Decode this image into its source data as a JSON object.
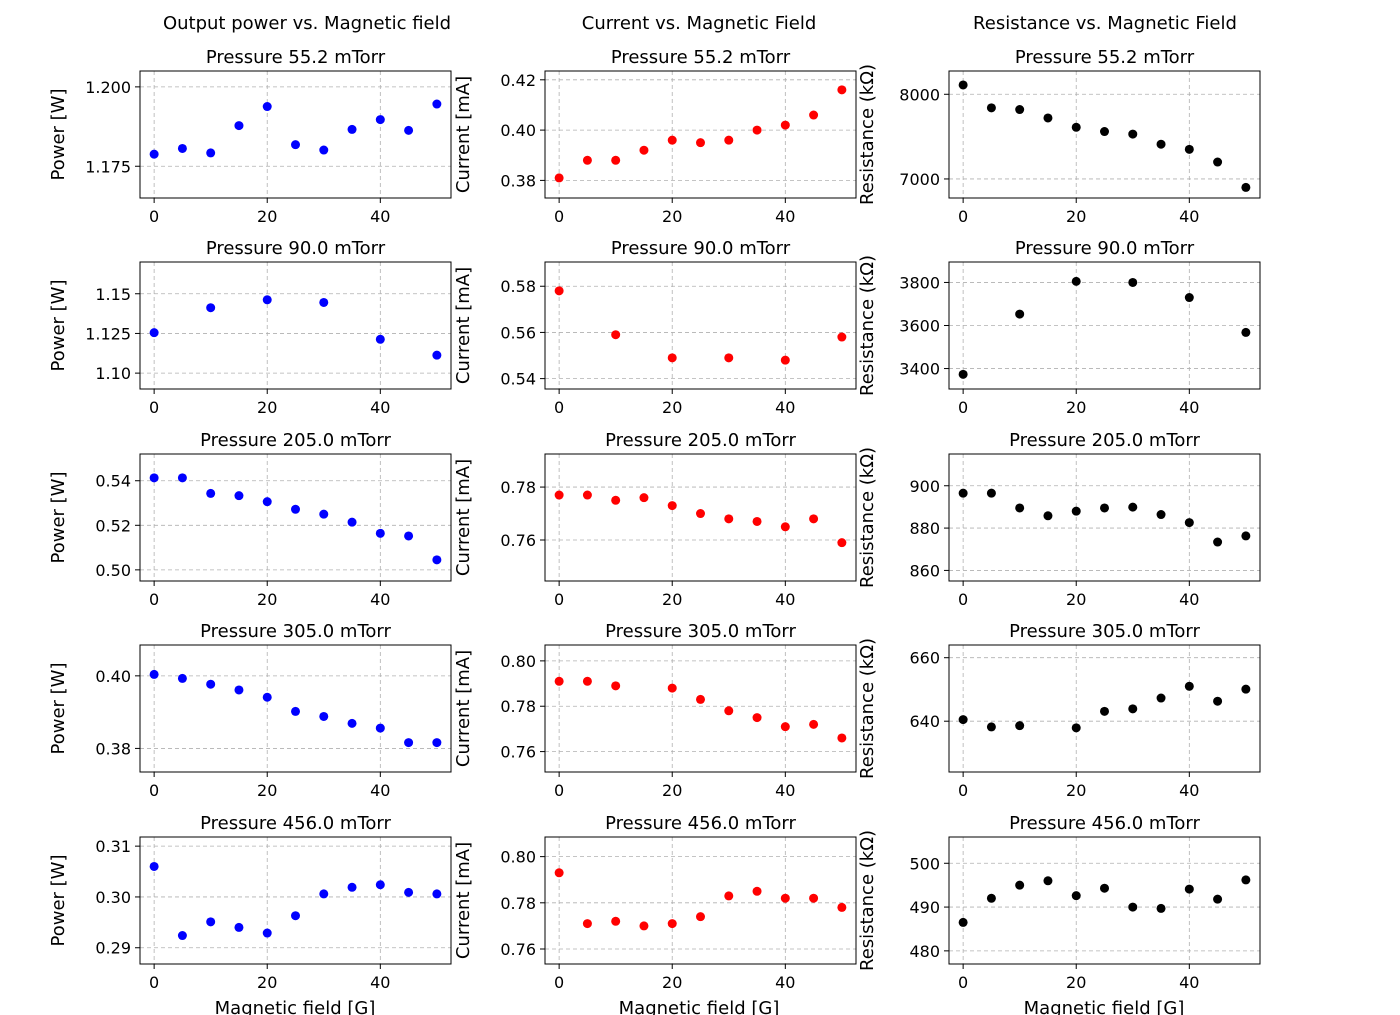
{
  "figure": {
    "column_titles": [
      "Output power vs. Magnetic field",
      "Current vs. Magnetic Field",
      "Resistance vs. Magnetic Field"
    ],
    "xlabel": "Magnetic field [G]",
    "row_titles": [
      "Pressure 55.2 mTorr",
      "Pressure 90.0 mTorr",
      "Pressure 205.0 mTorr",
      "Pressure 305.0 mTorr",
      "Pressure 456.0 mTorr"
    ]
  },
  "chart_data": [
    {
      "type": "scatter",
      "row": 0,
      "col": 0,
      "title": "Pressure 55.2 mTorr",
      "ylabel": "Power [W]",
      "color": "#0000ff",
      "xlim": [
        -2.5,
        52.5
      ],
      "ylim": [
        1.165,
        1.205
      ],
      "xticks": [
        0,
        20,
        40
      ],
      "xtick_labels": [
        "0",
        "20",
        "40"
      ],
      "yticks": [
        1.175,
        1.2
      ],
      "ytick_labels": [
        "1.175",
        "1.200"
      ],
      "x": [
        0,
        5,
        10,
        15,
        20,
        25,
        30,
        35,
        40,
        45,
        50
      ],
      "y": [
        1.1788,
        1.1806,
        1.1792,
        1.1878,
        1.1938,
        1.1818,
        1.1801,
        1.1866,
        1.1897,
        1.1863,
        1.1946
      ]
    },
    {
      "type": "scatter",
      "row": 0,
      "col": 1,
      "title": "Pressure 55.2 mTorr",
      "ylabel": "Current [mA]",
      "color": "#ff0000",
      "xlim": [
        -2.5,
        52.5
      ],
      "ylim": [
        0.373,
        0.4235
      ],
      "xticks": [
        0,
        20,
        40
      ],
      "xtick_labels": [
        "0",
        "20",
        "40"
      ],
      "yticks": [
        0.38,
        0.4,
        0.42
      ],
      "ytick_labels": [
        "0.38",
        "0.40",
        "0.42"
      ],
      "x": [
        0,
        5,
        10,
        15,
        20,
        25,
        30,
        35,
        40,
        45,
        50
      ],
      "y": [
        0.381,
        0.388,
        0.388,
        0.392,
        0.396,
        0.395,
        0.396,
        0.4,
        0.402,
        0.406,
        0.416
      ]
    },
    {
      "type": "scatter",
      "row": 0,
      "col": 2,
      "title": "Pressure 55.2 mTorr",
      "ylabel": "Resistance (kΩ)",
      "color": "#000000",
      "xlim": [
        -2.5,
        52.5
      ],
      "ylim": [
        6775,
        8275
      ],
      "xticks": [
        0,
        20,
        40
      ],
      "xtick_labels": [
        "0",
        "20",
        "40"
      ],
      "yticks": [
        7000,
        8000
      ],
      "ytick_labels": [
        "7000",
        "8000"
      ],
      "x": [
        0,
        5,
        10,
        15,
        20,
        25,
        30,
        35,
        40,
        45,
        50
      ],
      "y": [
        8110,
        7840,
        7820,
        7720,
        7610,
        7560,
        7530,
        7410,
        7350,
        7200,
        6900
      ]
    },
    {
      "type": "scatter",
      "row": 1,
      "col": 0,
      "title": "Pressure 90.0 mTorr",
      "ylabel": "Power [W]",
      "color": "#0000ff",
      "xlim": [
        -2.5,
        52.5
      ],
      "ylim": [
        1.09,
        1.17
      ],
      "xticks": [
        0,
        20,
        40
      ],
      "xtick_labels": [
        "0",
        "20",
        "40"
      ],
      "yticks": [
        1.1,
        1.125,
        1.15
      ],
      "ytick_labels": [
        "1.10",
        "1.125",
        "1.15"
      ],
      "x": [
        0,
        10,
        20,
        30,
        40,
        50
      ],
      "y": [
        1.1255,
        1.1412,
        1.1462,
        1.1445,
        1.1213,
        1.1113
      ]
    },
    {
      "type": "scatter",
      "row": 1,
      "col": 1,
      "title": "Pressure 90.0 mTorr",
      "ylabel": "Current [mA]",
      "color": "#ff0000",
      "xlim": [
        -2.5,
        52.5
      ],
      "ylim": [
        0.5355,
        0.5905
      ],
      "xticks": [
        0,
        20,
        40
      ],
      "xtick_labels": [
        "0",
        "20",
        "40"
      ],
      "yticks": [
        0.54,
        0.56,
        0.58
      ],
      "ytick_labels": [
        "0.54",
        "0.56",
        "0.58"
      ],
      "x": [
        0,
        10,
        20,
        30,
        40,
        50
      ],
      "y": [
        0.578,
        0.559,
        0.549,
        0.549,
        0.548,
        0.558
      ]
    },
    {
      "type": "scatter",
      "row": 1,
      "col": 2,
      "title": "Pressure 90.0 mTorr",
      "ylabel": "Resistance (kΩ)",
      "color": "#000000",
      "xlim": [
        -2.5,
        52.5
      ],
      "ylim": [
        3305,
        3895
      ],
      "xticks": [
        0,
        20,
        40
      ],
      "xtick_labels": [
        "0",
        "20",
        "40"
      ],
      "yticks": [
        3400,
        3600,
        3800
      ],
      "ytick_labels": [
        "3400",
        "3600",
        "3800"
      ],
      "x": [
        0,
        10,
        20,
        30,
        40,
        50
      ],
      "y": [
        3373,
        3653,
        3805,
        3800,
        3730,
        3568
      ]
    },
    {
      "type": "scatter",
      "row": 2,
      "col": 0,
      "title": "Pressure 205.0 mTorr",
      "ylabel": "Power [W]",
      "color": "#0000ff",
      "xlim": [
        -2.5,
        52.5
      ],
      "ylim": [
        0.495,
        0.552
      ],
      "xticks": [
        0,
        20,
        40
      ],
      "xtick_labels": [
        "0",
        "20",
        "40"
      ],
      "yticks": [
        0.5,
        0.52,
        0.54
      ],
      "ytick_labels": [
        "0.50",
        "0.52",
        "0.54"
      ],
      "x": [
        0,
        5,
        10,
        15,
        20,
        25,
        30,
        35,
        40,
        45,
        50
      ],
      "y": [
        0.5413,
        0.5413,
        0.5343,
        0.5333,
        0.5306,
        0.5272,
        0.525,
        0.5214,
        0.5164,
        0.5152,
        0.5045
      ]
    },
    {
      "type": "scatter",
      "row": 2,
      "col": 1,
      "title": "Pressure 205.0 mTorr",
      "ylabel": "Current [mA]",
      "color": "#ff0000",
      "xlim": [
        -2.5,
        52.5
      ],
      "ylim": [
        0.7445,
        0.7925
      ],
      "xticks": [
        0,
        20,
        40
      ],
      "xtick_labels": [
        "0",
        "20",
        "40"
      ],
      "yticks": [
        0.76,
        0.78
      ],
      "ytick_labels": [
        "0.76",
        "0.78"
      ],
      "x": [
        0,
        5,
        10,
        15,
        20,
        25,
        30,
        35,
        40,
        45,
        50
      ],
      "y": [
        0.777,
        0.777,
        0.775,
        0.776,
        0.773,
        0.77,
        0.768,
        0.767,
        0.765,
        0.768,
        0.759
      ]
    },
    {
      "type": "scatter",
      "row": 2,
      "col": 2,
      "title": "Pressure 205.0 mTorr",
      "ylabel": "Resistance (kΩ)",
      "color": "#000000",
      "xlim": [
        -2.5,
        52.5
      ],
      "ylim": [
        855,
        915
      ],
      "xticks": [
        0,
        20,
        40
      ],
      "xtick_labels": [
        "0",
        "20",
        "40"
      ],
      "yticks": [
        860,
        880,
        900
      ],
      "ytick_labels": [
        "860",
        "880",
        "900"
      ],
      "x": [
        0,
        5,
        10,
        15,
        20,
        25,
        30,
        35,
        40,
        45,
        50
      ],
      "y": [
        896.5,
        896.5,
        889.5,
        885.8,
        888,
        889.5,
        889.9,
        886.4,
        882.6,
        873.4,
        876.3
      ]
    },
    {
      "type": "scatter",
      "row": 3,
      "col": 0,
      "title": "Pressure 305.0 mTorr",
      "ylabel": "Power [W]",
      "color": "#0000ff",
      "xlim": [
        -2.5,
        52.5
      ],
      "ylim": [
        0.3735,
        0.4085
      ],
      "xticks": [
        0,
        20,
        40
      ],
      "xtick_labels": [
        "0",
        "20",
        "40"
      ],
      "yticks": [
        0.38,
        0.4
      ],
      "ytick_labels": [
        "0.38",
        "0.40"
      ],
      "x": [
        0,
        5,
        10,
        15,
        20,
        25,
        30,
        35,
        40,
        45,
        50
      ],
      "y": [
        0.4004,
        0.3993,
        0.3977,
        0.3961,
        0.3941,
        0.3902,
        0.3888,
        0.3869,
        0.3856,
        0.3816,
        0.3816
      ]
    },
    {
      "type": "scatter",
      "row": 3,
      "col": 1,
      "title": "Pressure 305.0 mTorr",
      "ylabel": "Current [mA]",
      "color": "#ff0000",
      "xlim": [
        -2.5,
        52.5
      ],
      "ylim": [
        0.751,
        0.807
      ],
      "xticks": [
        0,
        20,
        40
      ],
      "xtick_labels": [
        "0",
        "20",
        "40"
      ],
      "yticks": [
        0.76,
        0.78,
        0.8
      ],
      "ytick_labels": [
        "0.76",
        "0.78",
        "0.80"
      ],
      "x": [
        0,
        5,
        10,
        20,
        25,
        30,
        35,
        40,
        45,
        50
      ],
      "y": [
        0.791,
        0.791,
        0.789,
        0.788,
        0.783,
        0.778,
        0.775,
        0.771,
        0.772,
        0.766
      ]
    },
    {
      "type": "scatter",
      "row": 3,
      "col": 2,
      "title": "Pressure 305.0 mTorr",
      "ylabel": "Resistance (kΩ)",
      "color": "#000000",
      "xlim": [
        -2.5,
        52.5
      ],
      "ylim": [
        624,
        664
      ],
      "xticks": [
        0,
        20,
        40
      ],
      "xtick_labels": [
        "0",
        "20",
        "40"
      ],
      "yticks": [
        640,
        660
      ],
      "ytick_labels": [
        "640",
        "660"
      ],
      "x": [
        0,
        5,
        10,
        20,
        25,
        30,
        35,
        40,
        45,
        50
      ],
      "y": [
        640.5,
        638.2,
        638.6,
        637.9,
        643.1,
        643.9,
        647.3,
        651,
        646.3,
        650.1
      ]
    },
    {
      "type": "scatter",
      "row": 4,
      "col": 0,
      "title": "Pressure 456.0 mTorr",
      "ylabel": "Power [W]",
      "color": "#0000ff",
      "xlim": [
        -2.5,
        52.5
      ],
      "ylim": [
        0.2868,
        0.3118
      ],
      "xticks": [
        0,
        20,
        40
      ],
      "xtick_labels": [
        "0",
        "20",
        "40"
      ],
      "yticks": [
        0.29,
        0.3,
        0.31
      ],
      "ytick_labels": [
        "0.29",
        "0.30",
        "0.31"
      ],
      "x": [
        0,
        5,
        10,
        15,
        20,
        25,
        30,
        35,
        40,
        45,
        50
      ],
      "y": [
        0.306,
        0.2924,
        0.2951,
        0.294,
        0.2929,
        0.2963,
        0.3006,
        0.3019,
        0.3024,
        0.3009,
        0.3006
      ]
    },
    {
      "type": "scatter",
      "row": 4,
      "col": 1,
      "title": "Pressure 456.0 mTorr",
      "ylabel": "Current [mA]",
      "color": "#ff0000",
      "xlim": [
        -2.5,
        52.5
      ],
      "ylim": [
        0.7535,
        0.8085
      ],
      "xticks": [
        0,
        20,
        40
      ],
      "xtick_labels": [
        "0",
        "20",
        "40"
      ],
      "yticks": [
        0.76,
        0.78,
        0.8
      ],
      "ytick_labels": [
        "0.76",
        "0.78",
        "0.80"
      ],
      "x": [
        0,
        5,
        10,
        15,
        20,
        25,
        30,
        35,
        40,
        45,
        50
      ],
      "y": [
        0.793,
        0.771,
        0.772,
        0.77,
        0.771,
        0.774,
        0.783,
        0.785,
        0.782,
        0.782,
        0.778
      ]
    },
    {
      "type": "scatter",
      "row": 4,
      "col": 2,
      "title": "Pressure 456.0 mTorr",
      "ylabel": "Resistance (kΩ)",
      "color": "#000000",
      "xlim": [
        -2.5,
        52.5
      ],
      "ylim": [
        477,
        506
      ],
      "xticks": [
        0,
        20,
        40
      ],
      "xtick_labels": [
        "0",
        "20",
        "40"
      ],
      "yticks": [
        480,
        490,
        500
      ],
      "ytick_labels": [
        "480",
        "490",
        "500"
      ],
      "x": [
        0,
        5,
        10,
        15,
        20,
        25,
        30,
        35,
        40,
        45,
        50
      ],
      "y": [
        486.5,
        492,
        495,
        496,
        492.6,
        494.3,
        490,
        489.7,
        494.1,
        491.8,
        496.2
      ]
    }
  ]
}
